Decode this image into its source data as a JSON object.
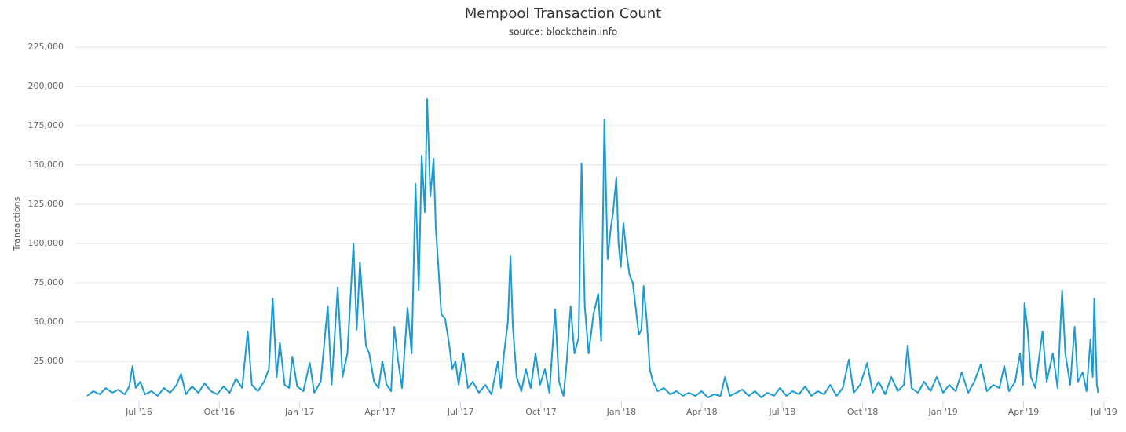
{
  "chart_data": {
    "type": "line",
    "title": "Mempool Transaction Count",
    "subtitle": "source: blockchain.info",
    "y_label": "Transactions",
    "xlim": [
      2016.3,
      2019.51
    ],
    "ylim": [
      0,
      225000
    ],
    "grid": true,
    "xticks": [
      {
        "value": 2016.5,
        "label": "Jul '16"
      },
      {
        "value": 2016.75,
        "label": "Oct '16"
      },
      {
        "value": 2017.0,
        "label": "Jan '17"
      },
      {
        "value": 2017.25,
        "label": "Apr '17"
      },
      {
        "value": 2017.5,
        "label": "Jul '17"
      },
      {
        "value": 2017.75,
        "label": "Oct '17"
      },
      {
        "value": 2018.0,
        "label": "Jan '18"
      },
      {
        "value": 2018.25,
        "label": "Apr '18"
      },
      {
        "value": 2018.5,
        "label": "Jul '18"
      },
      {
        "value": 2018.75,
        "label": "Oct '18"
      },
      {
        "value": 2019.0,
        "label": "Jan '19"
      },
      {
        "value": 2019.25,
        "label": "Apr '19"
      },
      {
        "value": 2019.5,
        "label": "Jul '19"
      }
    ],
    "yticks": [
      {
        "value": 25000,
        "label": "25,000"
      },
      {
        "value": 50000,
        "label": "50,000"
      },
      {
        "value": 75000,
        "label": "75,000"
      },
      {
        "value": 100000,
        "label": "100,000"
      },
      {
        "value": 125000,
        "label": "125,000"
      },
      {
        "value": 150000,
        "label": "150,000"
      },
      {
        "value": 175000,
        "label": "175,000"
      },
      {
        "value": 200000,
        "label": "200,000"
      },
      {
        "value": 225000,
        "label": "225,000"
      }
    ],
    "x": [
      2016.339,
      2016.358,
      2016.378,
      2016.397,
      2016.417,
      2016.436,
      2016.456,
      2016.47,
      2016.48,
      2016.49,
      2016.504,
      2016.519,
      2016.539,
      2016.558,
      2016.578,
      2016.597,
      2016.617,
      2016.631,
      2016.646,
      2016.665,
      2016.685,
      2016.704,
      2016.724,
      2016.743,
      2016.763,
      2016.782,
      2016.802,
      2016.821,
      2016.838,
      2016.851,
      2016.87,
      2016.889,
      2016.904,
      2016.916,
      2016.928,
      2016.938,
      2016.953,
      2016.967,
      2016.977,
      2016.992,
      2017.011,
      2017.031,
      2017.045,
      2017.065,
      2017.087,
      2017.099,
      2017.118,
      2017.133,
      2017.148,
      2017.167,
      2017.177,
      2017.187,
      2017.196,
      2017.206,
      2017.216,
      2017.231,
      2017.245,
      2017.257,
      2017.27,
      2017.284,
      2017.294,
      2017.306,
      2017.318,
      2017.335,
      2017.348,
      2017.36,
      2017.37,
      2017.379,
      2017.389,
      2017.396,
      2017.406,
      2017.416,
      2017.423,
      2017.431,
      2017.44,
      2017.452,
      2017.465,
      2017.474,
      2017.484,
      2017.494,
      2017.508,
      2017.523,
      2017.538,
      2017.557,
      2017.577,
      2017.596,
      2017.616,
      2017.625,
      2017.635,
      2017.647,
      2017.655,
      2017.662,
      2017.674,
      2017.689,
      2017.703,
      2017.718,
      2017.733,
      2017.747,
      2017.762,
      2017.776,
      2017.794,
      2017.806,
      2017.82,
      2017.83,
      2017.842,
      2017.854,
      2017.867,
      2017.876,
      2017.886,
      2017.898,
      2017.913,
      2017.928,
      2017.937,
      2017.947,
      2017.957,
      2017.967,
      2017.974,
      2017.984,
      2017.991,
      2017.998,
      2018.006,
      2018.015,
      2018.025,
      2018.035,
      2018.044,
      2018.054,
      2018.062,
      2018.069,
      2018.079,
      2018.088,
      2018.098,
      2018.113,
      2018.132,
      2018.152,
      2018.171,
      2018.191,
      2018.21,
      2018.23,
      2018.249,
      2018.269,
      2018.288,
      2018.308,
      2018.322,
      2018.337,
      2018.357,
      2018.376,
      2018.396,
      2018.415,
      2018.435,
      2018.454,
      2018.474,
      2018.493,
      2018.513,
      2018.532,
      2018.552,
      2018.571,
      2018.591,
      2018.61,
      2018.63,
      2018.649,
      2018.669,
      2018.688,
      2018.707,
      2018.722,
      2018.742,
      2018.764,
      2018.781,
      2018.8,
      2018.82,
      2018.839,
      2018.859,
      2018.878,
      2018.89,
      2018.902,
      2018.922,
      2018.941,
      2018.961,
      2018.98,
      2019.0,
      2019.019,
      2019.039,
      2019.058,
      2019.078,
      2019.097,
      2019.117,
      2019.136,
      2019.156,
      2019.175,
      2019.19,
      2019.205,
      2019.224,
      2019.239,
      2019.248,
      2019.253,
      2019.263,
      2019.273,
      2019.287,
      2019.297,
      2019.309,
      2019.322,
      2019.341,
      2019.356,
      2019.37,
      2019.38,
      2019.395,
      2019.409,
      2019.419,
      2019.434,
      2019.446,
      2019.458,
      2019.465,
      2019.47,
      2019.478,
      2019.482
    ],
    "series": [
      {
        "name": "Transactions",
        "color": "#1b9bd1",
        "values": [
          3000,
          6000,
          4000,
          8000,
          5000,
          7000,
          4000,
          9000,
          22000,
          8000,
          12000,
          4000,
          6000,
          3000,
          8000,
          5000,
          10000,
          17000,
          4000,
          9000,
          5000,
          11000,
          6000,
          4000,
          9000,
          5000,
          14000,
          8000,
          44000,
          10000,
          6000,
          12000,
          20000,
          65000,
          15000,
          37000,
          10000,
          8000,
          28000,
          9000,
          6000,
          24000,
          5000,
          12000,
          60000,
          10000,
          72000,
          15000,
          30000,
          100000,
          45000,
          88000,
          60000,
          35000,
          30000,
          12000,
          8000,
          25000,
          10000,
          6000,
          47000,
          25000,
          8000,
          59000,
          30000,
          138000,
          70000,
          156000,
          120000,
          192000,
          130000,
          154000,
          110000,
          85000,
          55000,
          52000,
          35000,
          20000,
          25000,
          10000,
          30000,
          8000,
          12000,
          5000,
          10000,
          4000,
          25000,
          8000,
          30000,
          50000,
          92000,
          48000,
          15000,
          6000,
          20000,
          8000,
          30000,
          10000,
          20000,
          5000,
          58000,
          12000,
          3000,
          25000,
          60000,
          30000,
          40000,
          151000,
          60000,
          30000,
          55000,
          68000,
          38000,
          179000,
          90000,
          110000,
          120000,
          142000,
          100000,
          85000,
          113000,
          95000,
          80000,
          75000,
          60000,
          42000,
          45000,
          73000,
          50000,
          20000,
          12000,
          6000,
          8000,
          4000,
          6000,
          3000,
          5000,
          3000,
          6000,
          2000,
          4000,
          3000,
          15000,
          3000,
          5000,
          7000,
          3000,
          6000,
          2000,
          5000,
          3000,
          8000,
          3000,
          6000,
          4000,
          9000,
          3000,
          6000,
          4000,
          10000,
          3000,
          8000,
          26000,
          5000,
          10000,
          24000,
          5000,
          12000,
          4000,
          15000,
          6000,
          10000,
          35000,
          8000,
          5000,
          12000,
          6000,
          15000,
          5000,
          10000,
          6000,
          18000,
          5000,
          12000,
          23000,
          6000,
          10000,
          8000,
          22000,
          6000,
          12000,
          30000,
          10000,
          62000,
          45000,
          15000,
          8000,
          25000,
          44000,
          12000,
          30000,
          8000,
          70000,
          30000,
          10000,
          47000,
          12000,
          18000,
          6000,
          39000,
          15000,
          65000,
          10000,
          5000
        ]
      }
    ]
  }
}
